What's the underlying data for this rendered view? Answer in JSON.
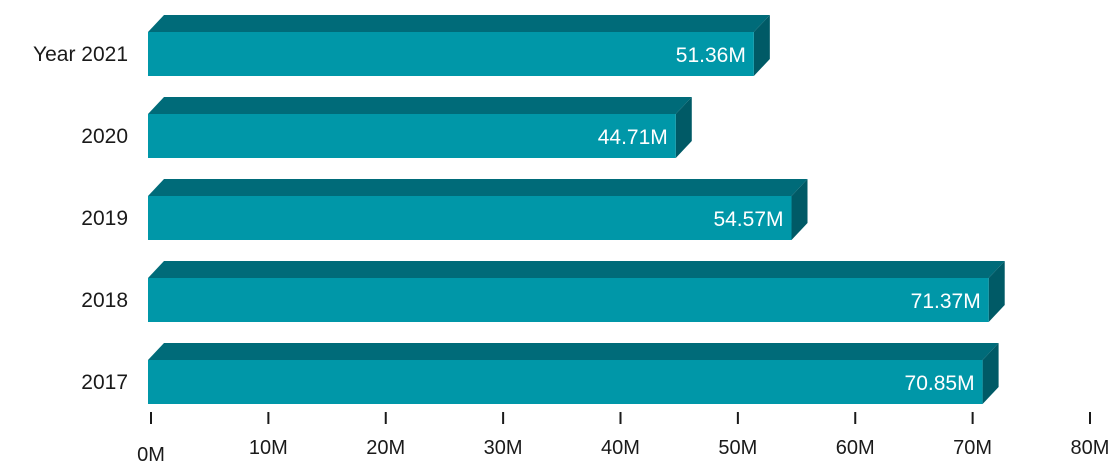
{
  "chart_data": {
    "type": "bar",
    "orientation": "horizontal",
    "style": "3d",
    "categories": [
      "Year 2021",
      "2020",
      "2019",
      "2018",
      "2017"
    ],
    "values": [
      51.36,
      44.71,
      54.57,
      71.37,
      70.85
    ],
    "value_labels": [
      "51.36M",
      "44.71M",
      "54.57M",
      "71.37M",
      "70.85M"
    ],
    "x_ticks": [
      "0M",
      "10M",
      "20M",
      "30M",
      "40M",
      "50M",
      "60M",
      "70M",
      "80M"
    ],
    "xlim": [
      0,
      80
    ],
    "title": "",
    "xlabel": "",
    "ylabel": "",
    "grid": false,
    "legend": "none",
    "colors": {
      "front": "#0097a8",
      "top": "#006b79",
      "side": "#005a66",
      "label": "#ffffff",
      "axis": "#1a1a1a"
    }
  }
}
